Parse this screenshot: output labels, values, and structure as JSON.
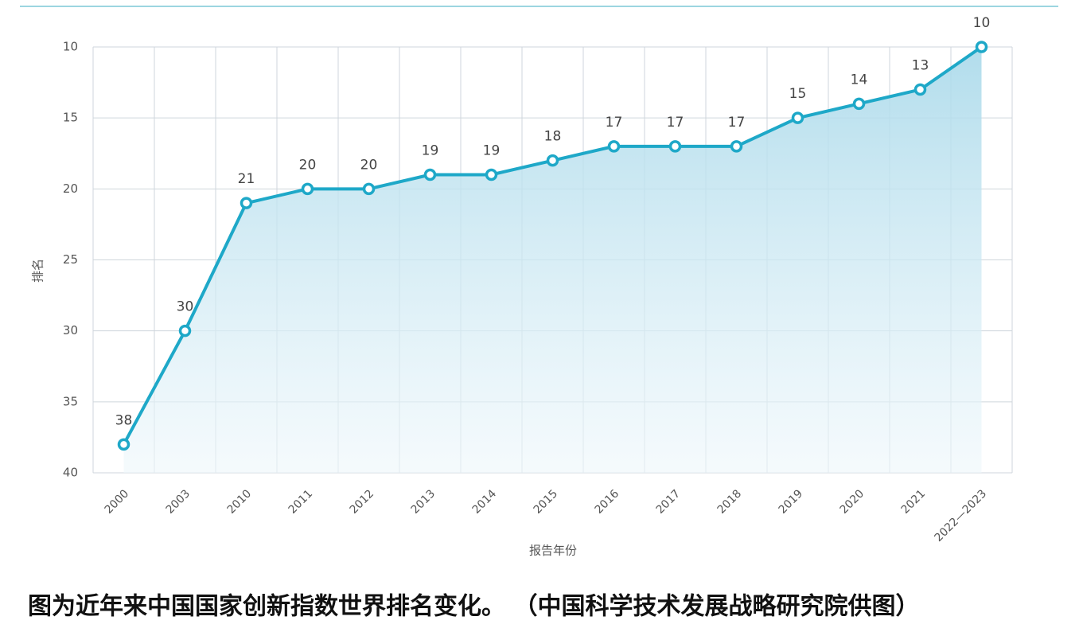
{
  "chart_data": {
    "type": "line",
    "categories": [
      "2000",
      "2003",
      "2010",
      "2011",
      "2012",
      "2013",
      "2014",
      "2015",
      "2016",
      "2017",
      "2018",
      "2019",
      "2020",
      "2021",
      "2022—2023"
    ],
    "values": [
      38,
      30,
      21,
      20,
      20,
      19,
      19,
      18,
      17,
      17,
      17,
      15,
      14,
      13,
      10
    ],
    "color": "#1ea8c8",
    "ylim": [
      10,
      40
    ],
    "y_inverted": true,
    "yticks": [
      10,
      15,
      20,
      25,
      30,
      35,
      40
    ],
    "grid": true,
    "y_label": "排名",
    "x_label": "报告年份",
    "caption": "图为近年来中国国家创新指数世界排名变化。 （中国科学技术发展战略研究院供图）"
  }
}
